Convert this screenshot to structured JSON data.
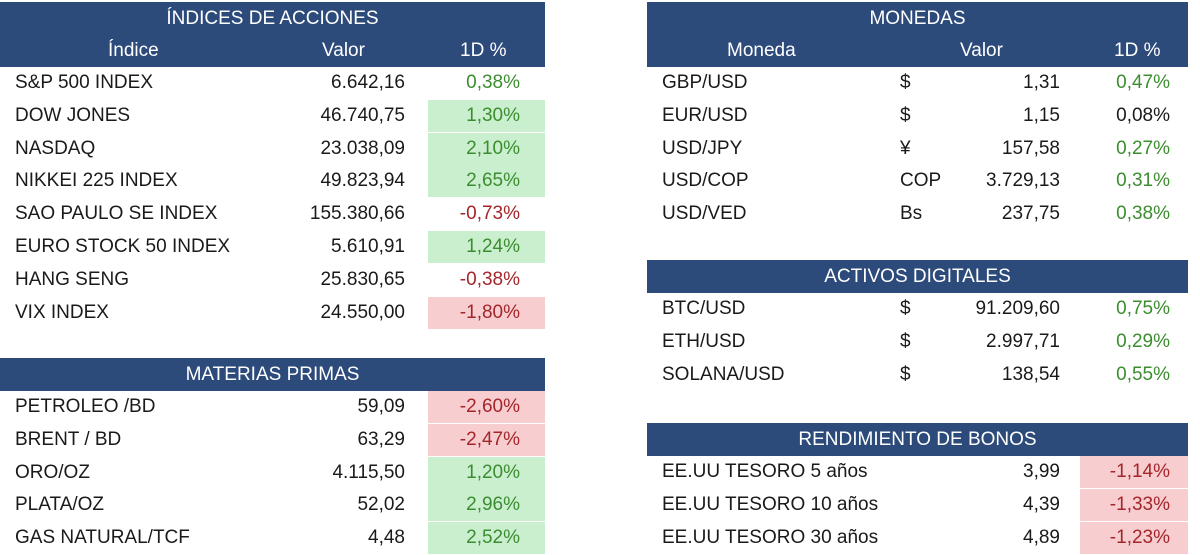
{
  "indices": {
    "title": "ÍNDICES DE ACCIONES",
    "headers": {
      "name": "Índice",
      "value": "Valor",
      "pct": "1D %"
    },
    "rows": [
      {
        "name": "S&P 500 INDEX",
        "value": "6.642,16",
        "pct": "0,38%",
        "trend": "pos",
        "fill": ""
      },
      {
        "name": "DOW JONES",
        "value": "46.740,75",
        "pct": "1,30%",
        "trend": "pos",
        "fill": "green"
      },
      {
        "name": "NASDAQ",
        "value": "23.038,09",
        "pct": "2,10%",
        "trend": "pos",
        "fill": "green"
      },
      {
        "name": "NIKKEI 225 INDEX",
        "value": "49.823,94",
        "pct": "2,65%",
        "trend": "pos",
        "fill": "green"
      },
      {
        "name": "SAO PAULO SE INDEX",
        "value": "155.380,66",
        "pct": "-0,73%",
        "trend": "neg",
        "fill": ""
      },
      {
        "name": "EURO STOCK 50 INDEX",
        "value": "5.610,91",
        "pct": "1,24%",
        "trend": "pos",
        "fill": "green"
      },
      {
        "name": "HANG SENG",
        "value": "25.830,65",
        "pct": "-0,38%",
        "trend": "neg",
        "fill": ""
      },
      {
        "name": "VIX INDEX",
        "value": "24.550,00",
        "pct": "-1,80%",
        "trend": "neg",
        "fill": "red"
      }
    ]
  },
  "commodities": {
    "title": "MATERIAS PRIMAS",
    "rows": [
      {
        "name": "PETROLEO /BD",
        "value": "59,09",
        "pct": "-2,60%",
        "trend": "neg",
        "fill": "red"
      },
      {
        "name": "BRENT / BD",
        "value": "63,29",
        "pct": "-2,47%",
        "trend": "neg",
        "fill": "red"
      },
      {
        "name": "ORO/OZ",
        "value": "4.115,50",
        "pct": "1,20%",
        "trend": "pos",
        "fill": "green"
      },
      {
        "name": "PLATA/OZ",
        "value": "52,02",
        "pct": "2,96%",
        "trend": "pos",
        "fill": "green"
      },
      {
        "name": "GAS NATURAL/TCF",
        "value": "4,48",
        "pct": "2,52%",
        "trend": "pos",
        "fill": "green"
      }
    ]
  },
  "currencies": {
    "title": "MONEDAS",
    "headers": {
      "name": "Moneda",
      "value": "Valor",
      "pct": "1D %"
    },
    "rows": [
      {
        "name": "GBP/USD",
        "symbol": "$",
        "value": "1,31",
        "pct": "0,47%",
        "trend": "pos",
        "fill": ""
      },
      {
        "name": "EUR/USD",
        "symbol": "$",
        "value": "1,15",
        "pct": "0,08%",
        "trend": "flat",
        "fill": ""
      },
      {
        "name": "USD/JPY",
        "symbol": "¥",
        "value": "157,58",
        "pct": "0,27%",
        "trend": "pos",
        "fill": ""
      },
      {
        "name": "USD/COP",
        "symbol": "COP",
        "value": "3.729,13",
        "pct": "0,31%",
        "trend": "pos",
        "fill": ""
      },
      {
        "name": "USD/VED",
        "symbol": "Bs",
        "value": "237,75",
        "pct": "0,38%",
        "trend": "pos",
        "fill": ""
      }
    ]
  },
  "digital": {
    "title": "ACTIVOS DIGITALES",
    "rows": [
      {
        "name": "BTC/USD",
        "symbol": "$",
        "value": "91.209,60",
        "pct": "0,75%",
        "trend": "pos",
        "fill": ""
      },
      {
        "name": "ETH/USD",
        "symbol": "$",
        "value": "2.997,71",
        "pct": "0,29%",
        "trend": "pos",
        "fill": ""
      },
      {
        "name": "SOLANA/USD",
        "symbol": "$",
        "value": "138,54",
        "pct": "0,55%",
        "trend": "pos",
        "fill": ""
      }
    ]
  },
  "bonds": {
    "title": "RENDIMIENTO DE BONOS",
    "rows": [
      {
        "name": "EE.UU TESORO 5 años",
        "value": "3,99",
        "pct": "-1,14%",
        "trend": "neg",
        "fill": "red"
      },
      {
        "name": "EE.UU TESORO 10 años",
        "value": "4,39",
        "pct": "-1,33%",
        "trend": "neg",
        "fill": "red"
      },
      {
        "name": "EE.UU TESORO 30 años",
        "value": "4,89",
        "pct": "-1,23%",
        "trend": "neg",
        "fill": "red"
      }
    ]
  }
}
